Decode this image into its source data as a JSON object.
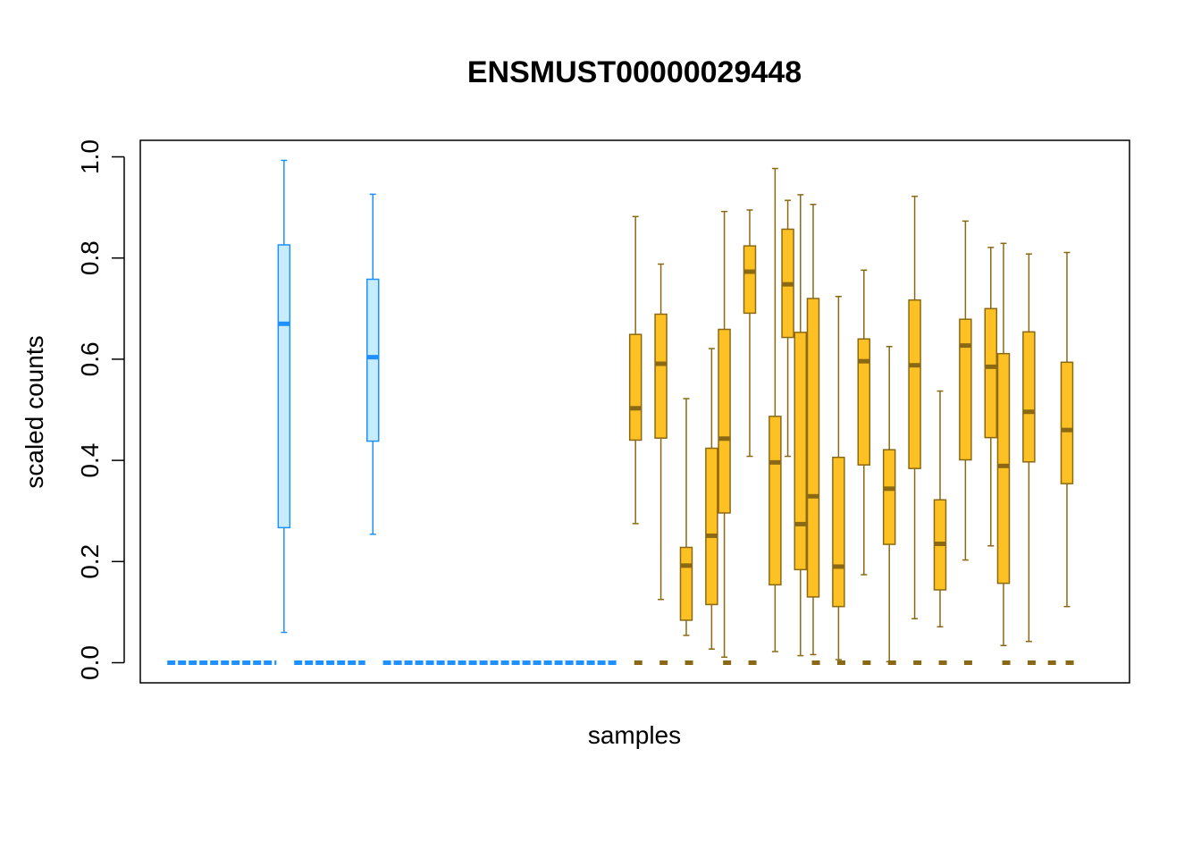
{
  "chart_data": {
    "type": "boxplot",
    "title": "ENSMUST00000029448",
    "xlabel": "samples",
    "ylabel": "scaled counts",
    "ylim": [
      0,
      1
    ],
    "yticks": [
      "0.0",
      "0.2",
      "0.4",
      "0.6",
      "0.8",
      "1.0"
    ],
    "n_samples": 36,
    "grid": false,
    "legend": "none",
    "groups": [
      {
        "color": "#1e90ff",
        "fill": "#c7ecfb",
        "dark": "#1e90ff"
      },
      {
        "color": "#8b6914",
        "fill": "#fdc124",
        "dark": "#8b6914"
      }
    ],
    "zero_markers": [
      {
        "group": 0,
        "from": 1.5,
        "to": 5.8
      },
      {
        "group": 0,
        "from": 6.5,
        "to": 9.3
      },
      {
        "group": 0,
        "from": 10.0,
        "to": 19.2
      },
      {
        "group": 1,
        "from": 19.9,
        "to": 20.3
      },
      {
        "group": 1,
        "from": 20.9,
        "to": 21.3
      },
      {
        "group": 1,
        "from": 21.9,
        "to": 22.3
      },
      {
        "group": 1,
        "from": 23.4,
        "to": 23.8
      },
      {
        "group": 1,
        "from": 24.4,
        "to": 24.8
      },
      {
        "group": 1,
        "from": 26.9,
        "to": 27.3
      },
      {
        "group": 1,
        "from": 27.9,
        "to": 28.3
      },
      {
        "group": 1,
        "from": 28.9,
        "to": 29.3
      },
      {
        "group": 1,
        "from": 29.9,
        "to": 30.3
      },
      {
        "group": 1,
        "from": 30.9,
        "to": 31.3
      },
      {
        "group": 1,
        "from": 31.9,
        "to": 32.3
      },
      {
        "group": 1,
        "from": 32.9,
        "to": 33.3
      },
      {
        "group": 1,
        "from": 34.4,
        "to": 34.8
      },
      {
        "group": 1,
        "from": 35.4,
        "to": 35.8
      },
      {
        "group": 1,
        "from": 36.2,
        "to": 36.6
      },
      {
        "group": 1,
        "from": 36.9,
        "to": 37.3
      }
    ],
    "boxes": [
      {
        "x": 6.1,
        "group": 0,
        "min": 0.06,
        "q1": 0.267,
        "median": 0.67,
        "q3": 0.826,
        "max": 0.993
      },
      {
        "x": 9.6,
        "group": 0,
        "min": 0.254,
        "q1": 0.438,
        "median": 0.604,
        "q3": 0.758,
        "max": 0.926
      },
      {
        "x": 19.95,
        "group": 1,
        "min": 0.275,
        "q1": 0.44,
        "median": 0.503,
        "q3": 0.649,
        "max": 0.882
      },
      {
        "x": 20.95,
        "group": 1,
        "min": 0.125,
        "q1": 0.444,
        "median": 0.591,
        "q3": 0.689,
        "max": 0.788
      },
      {
        "x": 21.95,
        "group": 1,
        "min": 0.054,
        "q1": 0.084,
        "median": 0.192,
        "q3": 0.228,
        "max": 0.522
      },
      {
        "x": 22.95,
        "group": 1,
        "min": 0.027,
        "q1": 0.115,
        "median": 0.251,
        "q3": 0.424,
        "max": 0.621
      },
      {
        "x": 23.45,
        "group": 1,
        "min": 0.011,
        "q1": 0.296,
        "median": 0.443,
        "q3": 0.659,
        "max": 0.892
      },
      {
        "x": 24.45,
        "group": 1,
        "min": 0.408,
        "q1": 0.691,
        "median": 0.773,
        "q3": 0.824,
        "max": 0.895
      },
      {
        "x": 25.45,
        "group": 1,
        "min": 0.022,
        "q1": 0.154,
        "median": 0.396,
        "q3": 0.487,
        "max": 0.977
      },
      {
        "x": 25.95,
        "group": 1,
        "min": 0.408,
        "q1": 0.643,
        "median": 0.748,
        "q3": 0.857,
        "max": 0.914
      },
      {
        "x": 26.45,
        "group": 1,
        "min": 0.014,
        "q1": 0.184,
        "median": 0.274,
        "q3": 0.653,
        "max": 0.925
      },
      {
        "x": 26.95,
        "group": 1,
        "min": 0.016,
        "q1": 0.13,
        "median": 0.329,
        "q3": 0.72,
        "max": 0.906
      },
      {
        "x": 27.95,
        "group": 1,
        "min": 0.006,
        "q1": 0.111,
        "median": 0.19,
        "q3": 0.406,
        "max": 0.724
      },
      {
        "x": 28.95,
        "group": 1,
        "min": 0.174,
        "q1": 0.391,
        "median": 0.596,
        "q3": 0.64,
        "max": 0.776
      },
      {
        "x": 29.95,
        "group": 1,
        "min": 0.002,
        "q1": 0.234,
        "median": 0.344,
        "q3": 0.421,
        "max": 0.625
      },
      {
        "x": 30.95,
        "group": 1,
        "min": 0.087,
        "q1": 0.384,
        "median": 0.588,
        "q3": 0.717,
        "max": 0.922
      },
      {
        "x": 31.95,
        "group": 1,
        "min": 0.071,
        "q1": 0.144,
        "median": 0.235,
        "q3": 0.322,
        "max": 0.537
      },
      {
        "x": 32.95,
        "group": 1,
        "min": 0.203,
        "q1": 0.401,
        "median": 0.627,
        "q3": 0.679,
        "max": 0.873
      },
      {
        "x": 33.95,
        "group": 1,
        "min": 0.231,
        "q1": 0.445,
        "median": 0.585,
        "q3": 0.7,
        "max": 0.821
      },
      {
        "x": 34.45,
        "group": 1,
        "min": 0.034,
        "q1": 0.157,
        "median": 0.389,
        "q3": 0.611,
        "max": 0.829
      },
      {
        "x": 35.45,
        "group": 1,
        "min": 0.042,
        "q1": 0.397,
        "median": 0.496,
        "q3": 0.654,
        "max": 0.808
      },
      {
        "x": 36.95,
        "group": 1,
        "min": 0.111,
        "q1": 0.354,
        "median": 0.46,
        "q3": 0.594,
        "max": 0.811
      }
    ]
  }
}
